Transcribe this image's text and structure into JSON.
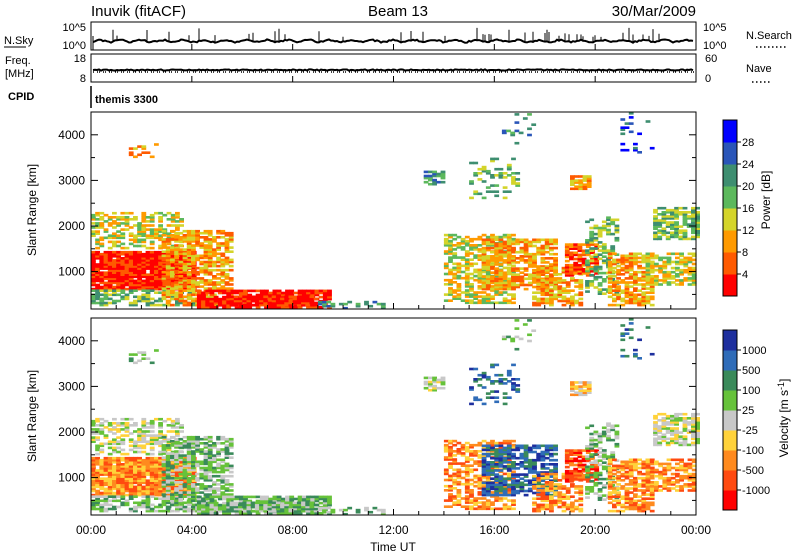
{
  "header": {
    "station": "Inuvik (fitACF)",
    "beam": "Beam 13",
    "date": "30/Mar/2009"
  },
  "noise_panel": {
    "left_label": "N.Sky",
    "right_label": "N.Search",
    "left_ticks": [
      "10^5",
      "10^0"
    ],
    "right_ticks": [
      "10^5",
      "10^0"
    ]
  },
  "freq_panel": {
    "left_label_1": "Freq.",
    "left_label_2": "[MHz]",
    "right_label": "Nave",
    "left_ticks": [
      "18",
      "8"
    ],
    "right_ticks": [
      "60",
      "0"
    ]
  },
  "cpid_panel": {
    "label": "CPID",
    "value": "themis 3300"
  },
  "chart_data": [
    {
      "type": "heatmap",
      "title": "",
      "ylabel": "Slant Range [km]",
      "xlabel": "Time UT",
      "y_ticks": [
        "1000",
        "2000",
        "3000",
        "4000"
      ],
      "ylim": [
        180,
        4500
      ],
      "colorbar_label": "Power [dB]",
      "colorbar_ticks": [
        "4",
        "8",
        "12",
        "16",
        "20",
        "24",
        "28"
      ],
      "colorbar_colors": [
        "#0000ff",
        "#2a55b8",
        "#3e8e70",
        "#5cb85c",
        "#d4d42a",
        "#ff9a00",
        "#ff5a00",
        "#ff0000"
      ]
    },
    {
      "type": "heatmap",
      "title": "",
      "ylabel": "Slant Range [km]",
      "xlabel": "Time UT",
      "y_ticks": [
        "1000",
        "2000",
        "3000",
        "4000"
      ],
      "ylim": [
        180,
        4500
      ],
      "colorbar_label": "Velocity [m s^-1]",
      "colorbar_ticks": [
        "1000",
        "500",
        "100",
        "25",
        "-25",
        "-100",
        "-500",
        "-1000"
      ],
      "colorbar_colors": [
        "#1e2f9e",
        "#2f6cb8",
        "#3a8a5a",
        "#66c23a",
        "#c8c8c8",
        "#ffd23a",
        "#ff8a1e",
        "#ff4a10",
        "#ff0000"
      ]
    }
  ],
  "time_axis": {
    "ticks": [
      "00:00",
      "04:00",
      "08:00",
      "12:00",
      "16:00",
      "20:00",
      "00:00"
    ],
    "label": "Time UT"
  }
}
